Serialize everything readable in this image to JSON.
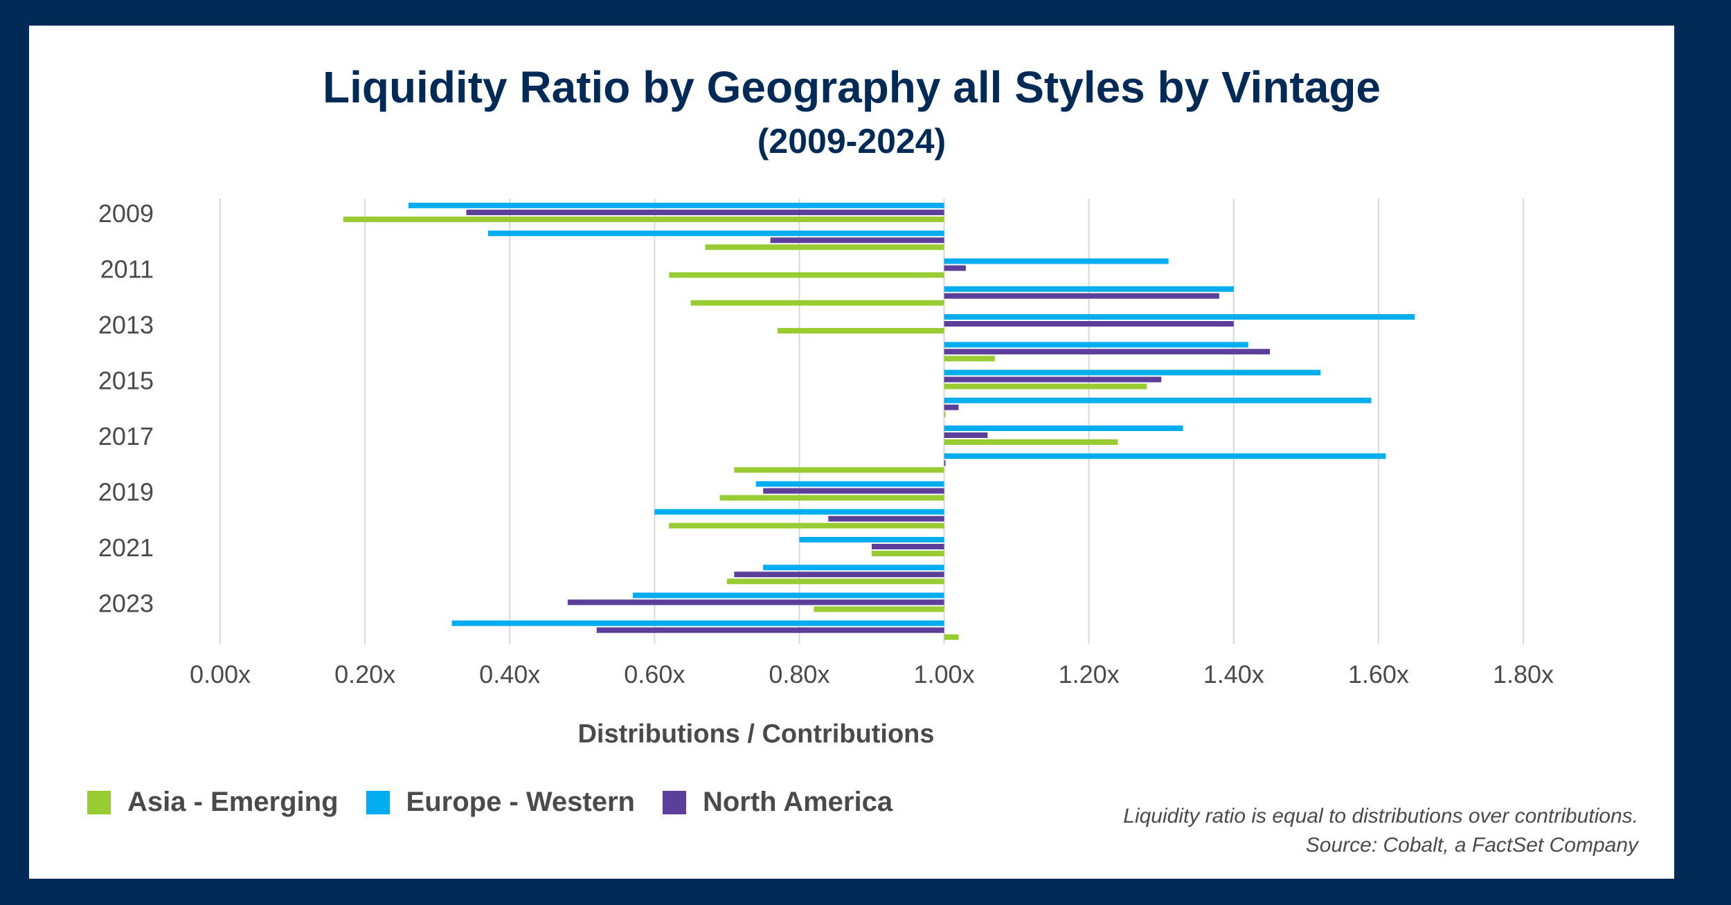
{
  "chart_data": {
    "type": "bar",
    "orientation": "horizontal",
    "title": "Liquidity Ratio by Geography all Styles by Vintage",
    "subtitle": "(2009-2024)",
    "xlabel": "Distributions / Contributions",
    "ylabel": "",
    "xlim": [
      0,
      1.8
    ],
    "baseline": 1.0,
    "xticks": [
      "0.00x",
      "0.20x",
      "0.40x",
      "0.60x",
      "0.80x",
      "1.00x",
      "1.20x",
      "1.40x",
      "1.60x",
      "1.80x"
    ],
    "xtick_values": [
      0,
      0.2,
      0.4,
      0.6,
      0.8,
      1.0,
      1.2,
      1.4,
      1.6,
      1.8
    ],
    "categories": [
      "2009",
      "2010",
      "2011",
      "2012",
      "2013",
      "2014",
      "2015",
      "2016",
      "2017",
      "2018",
      "2019",
      "2020",
      "2021",
      "2022",
      "2023",
      "2024"
    ],
    "category_labels_shown": [
      "2009",
      "2011",
      "2013",
      "2015",
      "2017",
      "2019",
      "2021",
      "2023"
    ],
    "grid": true,
    "legend_position": "bottom-left",
    "series": [
      {
        "name": "Europe - Western",
        "color": "#00adef",
        "values": [
          0.26,
          0.37,
          1.31,
          1.4,
          1.65,
          1.42,
          1.52,
          1.59,
          1.33,
          1.61,
          0.74,
          0.6,
          0.8,
          0.75,
          0.57,
          0.32
        ]
      },
      {
        "name": "North America",
        "color": "#5b3f9a",
        "values": [
          0.34,
          0.76,
          1.03,
          1.38,
          1.4,
          1.45,
          1.3,
          1.02,
          1.06,
          1.0,
          0.75,
          0.84,
          0.9,
          0.71,
          0.48,
          0.52
        ]
      },
      {
        "name": "Asia - Emerging",
        "color": "#99cc33",
        "values": [
          0.17,
          0.67,
          0.62,
          0.65,
          0.77,
          1.07,
          1.28,
          1.0,
          1.24,
          0.71,
          0.69,
          0.62,
          0.9,
          0.7,
          0.82,
          1.02
        ]
      }
    ]
  },
  "note": {
    "line1": "Liquidity ratio is equal to distributions over contributions.",
    "line2": "Source: Cobalt, a FactSet Company"
  }
}
